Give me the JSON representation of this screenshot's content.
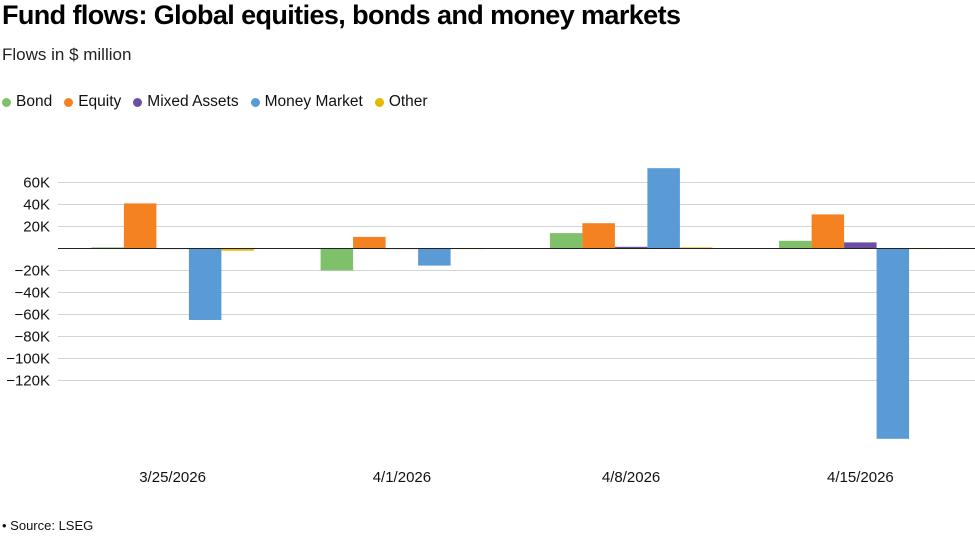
{
  "header": {
    "title": "Fund flows: Global equities, bonds and money markets",
    "subtitle": "Flows in $ million"
  },
  "footer": {
    "source": "• Source: LSEG"
  },
  "chart_data": {
    "type": "bar",
    "title": "Fund flows: Global equities, bonds and money markets",
    "subtitle": "Flows in $ million",
    "categories": [
      "3/25/2026",
      "4/1/2026",
      "4/8/2026",
      "4/15/2026"
    ],
    "series": [
      {
        "name": "Bond",
        "color": "#7fc06b",
        "values": [
          1000,
          -20000,
          14000,
          7000
        ]
      },
      {
        "name": "Equity",
        "color": "#f58220",
        "values": [
          41000,
          10500,
          23000,
          31000
        ]
      },
      {
        "name": "Mixed Assets",
        "color": "#6a4fa3",
        "values": [
          0,
          0,
          1500,
          5500
        ]
      },
      {
        "name": "Money Market",
        "color": "#5b9bd5",
        "values": [
          -65000,
          -15500,
          73000,
          -173000
        ]
      },
      {
        "name": "Other",
        "color": "#e6b800",
        "values": [
          -2000,
          0,
          1000,
          0
        ]
      }
    ],
    "yticks": [
      60000,
      40000,
      20000,
      -20000,
      -40000,
      -60000,
      -80000,
      -100000,
      -120000
    ],
    "ytick_labels": [
      "60K",
      "40K",
      "20K",
      "−20K",
      "−40K",
      "−60K",
      "−80K",
      "−100K",
      "−120K"
    ],
    "ylim": [
      -173000,
      75000
    ],
    "grid": true,
    "legend_position": "top-left"
  }
}
